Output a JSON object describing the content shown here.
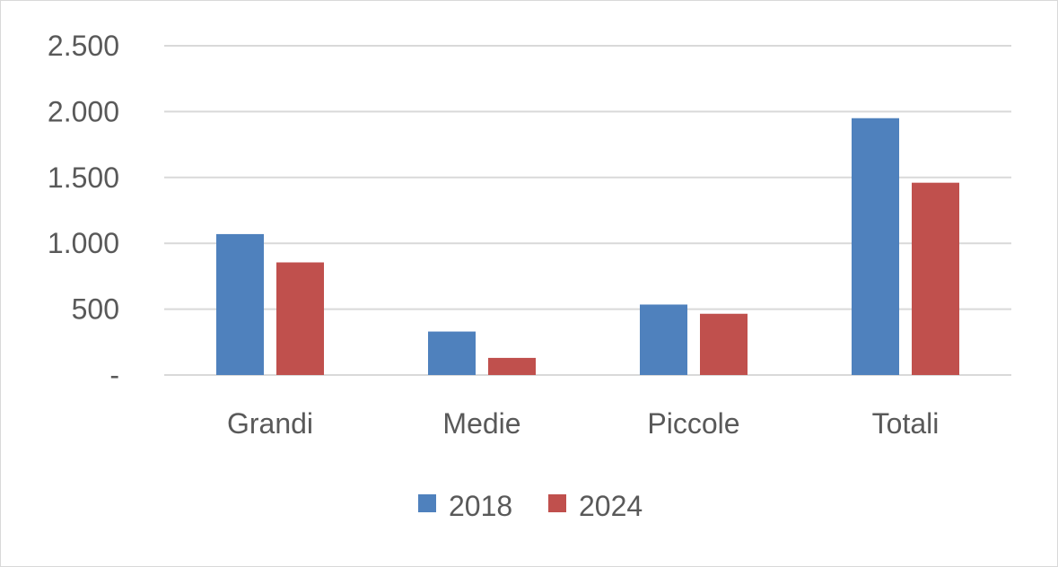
{
  "chart_data": {
    "type": "bar",
    "categories": [
      "Grandi",
      "Medie",
      "Piccole",
      "Totali"
    ],
    "series": [
      {
        "name": "2018",
        "values": [
          1070,
          330,
          535,
          1950
        ],
        "color": "#4f81bd"
      },
      {
        "name": "2024",
        "values": [
          855,
          130,
          465,
          1460
        ],
        "color": "#c0504d"
      }
    ],
    "y_ticks": [
      {
        "value": 0,
        "label": "-"
      },
      {
        "value": 500,
        "label": "500"
      },
      {
        "value": 1000,
        "label": "1.000"
      },
      {
        "value": 1500,
        "label": "1.500"
      },
      {
        "value": 2000,
        "label": "2.000"
      },
      {
        "value": 2500,
        "label": "2.500"
      }
    ],
    "ylim": [
      0,
      2500
    ],
    "grid": true,
    "legend_position": "bottom",
    "gridline_color": "#d9d9d9"
  }
}
